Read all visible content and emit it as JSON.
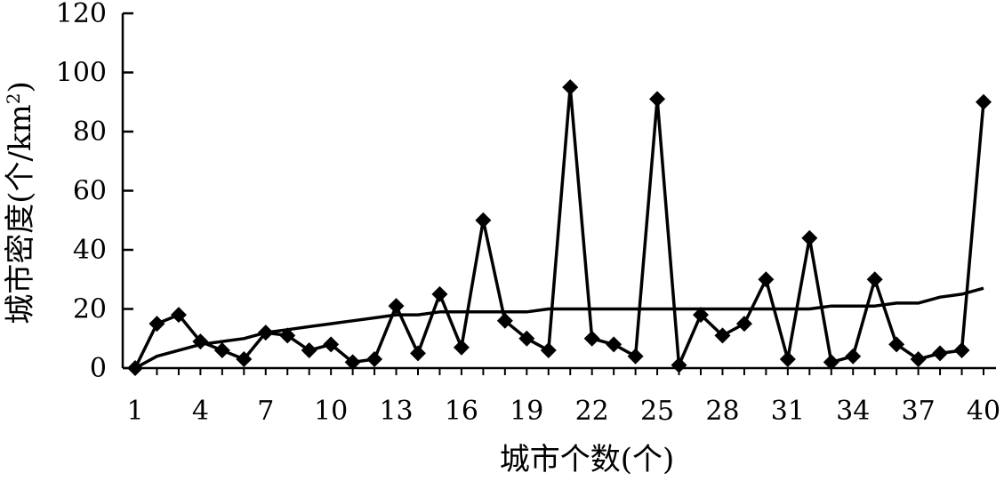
{
  "chart_data": {
    "type": "line",
    "xlabel": "城市个数(个)",
    "ylabel": "城市密度(个/km",
    "ylabel_sup": "2",
    "ylabel_close": ")",
    "ylim": [
      0,
      120
    ],
    "xlim": [
      1,
      40
    ],
    "yticks": [
      0,
      20,
      40,
      60,
      80,
      100,
      120
    ],
    "yticks_labels": [
      "0",
      "20",
      "40",
      "60",
      "80",
      "100",
      "120"
    ],
    "xticks": [
      1,
      4,
      7,
      10,
      13,
      16,
      19,
      22,
      25,
      28,
      31,
      34,
      37,
      40
    ],
    "xticks_labels": [
      "1",
      "4",
      "7",
      "10",
      "13",
      "16",
      "19",
      "22",
      "25",
      "28",
      "31",
      "34",
      "37",
      "40"
    ],
    "grid": false,
    "series": [
      {
        "marker": "diamond",
        "x": [
          1,
          2,
          3,
          4,
          5,
          6,
          7,
          8,
          9,
          10,
          11,
          12,
          13,
          14,
          15,
          16,
          17,
          18,
          19,
          20,
          21,
          22,
          23,
          24,
          25,
          26,
          27,
          28,
          29,
          30,
          31,
          32,
          33,
          34,
          35,
          36,
          37,
          38,
          39,
          40
        ],
        "values": [
          0,
          15,
          18,
          9,
          6,
          3,
          12,
          11,
          6,
          8,
          2,
          3,
          21,
          5,
          25,
          7,
          50,
          16,
          10,
          6,
          95,
          10,
          8,
          4,
          91,
          1,
          18,
          11,
          15,
          30,
          3,
          44,
          2,
          4,
          30,
          8,
          3,
          5,
          6,
          90
        ]
      },
      {
        "marker": "none",
        "x": [
          1,
          2,
          3,
          4,
          5,
          6,
          7,
          8,
          9,
          10,
          11,
          12,
          13,
          14,
          15,
          16,
          17,
          18,
          19,
          20,
          21,
          22,
          23,
          24,
          25,
          26,
          27,
          28,
          29,
          30,
          31,
          32,
          33,
          34,
          35,
          36,
          37,
          38,
          39,
          40
        ],
        "values": [
          0,
          4,
          6,
          8,
          9,
          10,
          12,
          13,
          14,
          15,
          16,
          17,
          18,
          18,
          19,
          19,
          19,
          19,
          19,
          20,
          20,
          20,
          20,
          20,
          20,
          20,
          20,
          20,
          20,
          20,
          20,
          20,
          21,
          21,
          21,
          22,
          22,
          24,
          25,
          27
        ]
      }
    ]
  }
}
